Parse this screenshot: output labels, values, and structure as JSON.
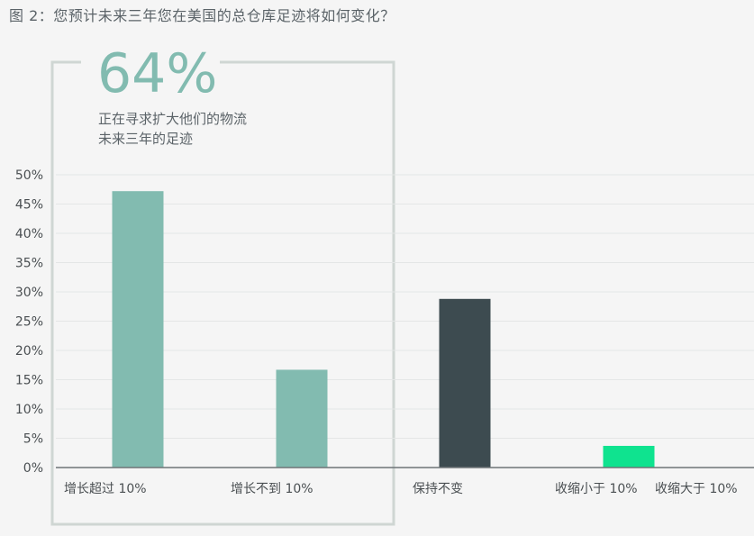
{
  "figure": {
    "caption": "图 2：您预计未来三年您在美国的总仓库足迹将如何变化？"
  },
  "callout": {
    "value": "64%",
    "line1": "正在寻求扩大他们的物流",
    "line2": "未来三年的足迹"
  },
  "chart_data": {
    "type": "bar",
    "categories": [
      "增长超过 10%",
      "增长不到 10%",
      "保持不变",
      "收缩小于 10%",
      "收缩大于 10%"
    ],
    "values": [
      47.2,
      16.7,
      28.8,
      3.7,
      0
    ],
    "colors": [
      "#82bbb0",
      "#82bbb0",
      "#3d4b50",
      "#0fe38f",
      "#0fe38f"
    ],
    "ylim": [
      0,
      50
    ],
    "yticks": [
      "0%",
      "5%",
      "10%",
      "15%",
      "20%",
      "25%",
      "30%",
      "35%",
      "40%",
      "45%",
      "50%"
    ],
    "grid": true
  }
}
